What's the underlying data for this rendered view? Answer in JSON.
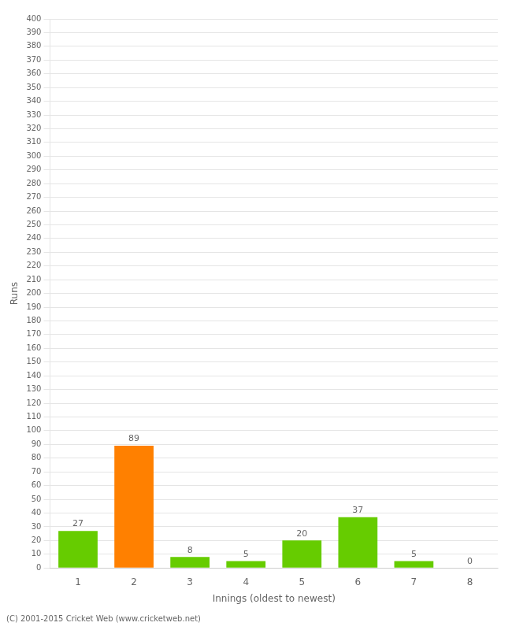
{
  "chart_data": {
    "type": "bar",
    "categories": [
      "1",
      "2",
      "3",
      "4",
      "5",
      "6",
      "7",
      "8"
    ],
    "values": [
      27,
      89,
      8,
      5,
      20,
      37,
      5,
      0
    ],
    "colors": [
      "#66cc00",
      "#ff8000",
      "#66cc00",
      "#66cc00",
      "#66cc00",
      "#66cc00",
      "#66cc00",
      "#66cc00"
    ],
    "xlabel": "Innings (oldest to newest)",
    "ylabel": "Runs",
    "ylim": [
      0,
      400
    ],
    "yticks": [
      0,
      10,
      20,
      30,
      40,
      50,
      60,
      70,
      80,
      90,
      100,
      110,
      120,
      130,
      140,
      150,
      160,
      170,
      180,
      190,
      200,
      210,
      220,
      230,
      240,
      250,
      260,
      270,
      280,
      290,
      300,
      310,
      320,
      330,
      340,
      350,
      360,
      370,
      380,
      390,
      400
    ],
    "grid": true,
    "data_labels": true,
    "annotations": [
      "(C) 2001-2015 Cricket Web (www.cricketweb.net)"
    ]
  }
}
